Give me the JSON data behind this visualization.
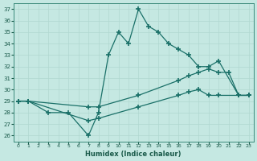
{
  "bg_color": "#c5e8e2",
  "line_color": "#1a7068",
  "xlabel": "Humidex (Indice chaleur)",
  "xlim": [
    -0.5,
    23.5
  ],
  "ylim": [
    25.5,
    37.5
  ],
  "xticks": [
    0,
    1,
    2,
    3,
    4,
    5,
    6,
    7,
    8,
    9,
    10,
    11,
    12,
    13,
    14,
    15,
    16,
    17,
    18,
    19,
    20,
    21,
    22,
    23
  ],
  "yticks": [
    26,
    27,
    28,
    29,
    30,
    31,
    32,
    33,
    34,
    35,
    36,
    37
  ],
  "series": [
    {
      "x": [
        0,
        1,
        3,
        5,
        7,
        8,
        9,
        10,
        11,
        12,
        13,
        14,
        15,
        16,
        17,
        18,
        19,
        20,
        22,
        23
      ],
      "y": [
        29,
        29,
        28,
        28,
        26,
        28,
        33,
        35,
        34,
        37,
        35.5,
        35,
        34,
        33.5,
        33,
        32,
        32,
        32.5,
        29.5,
        29.5
      ]
    },
    {
      "x": [
        0,
        1,
        7,
        8,
        12,
        16,
        17,
        18,
        19,
        20,
        21,
        22,
        23
      ],
      "y": [
        29,
        29,
        28.5,
        28.5,
        29.5,
        30.8,
        31.2,
        31.5,
        31.8,
        31.5,
        31.5,
        29.5,
        29.5
      ]
    },
    {
      "x": [
        0,
        1,
        7,
        8,
        12,
        16,
        17,
        18,
        19,
        20,
        22,
        23
      ],
      "y": [
        29,
        29,
        27.3,
        27.5,
        28.5,
        29.5,
        29.8,
        30.0,
        29.5,
        29.5,
        29.5,
        29.5
      ]
    }
  ]
}
